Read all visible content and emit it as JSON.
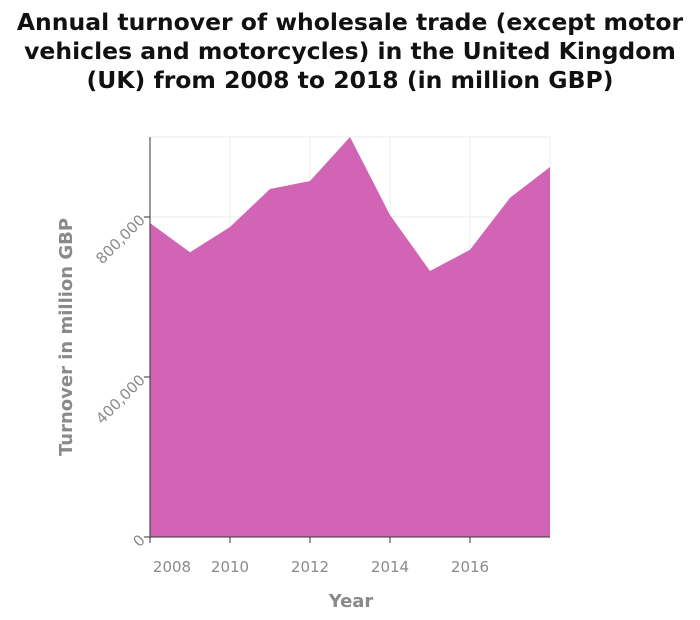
{
  "chart_data": {
    "type": "area",
    "title": "Annual turnover of wholesale trade (except motor vehicles and motorcycles) in the United Kingdom (UK) from 2008 to 2018 (in million GBP)",
    "xlabel": "Year",
    "ylabel": "Turnover in million GBP",
    "x": [
      2008,
      2009,
      2010,
      2011,
      2012,
      2013,
      2014,
      2015,
      2016,
      2017,
      2018
    ],
    "values": [
      785000,
      712000,
      775000,
      870000,
      890000,
      1000000,
      805000,
      665000,
      718000,
      848000,
      925000
    ],
    "xlim": [
      2008,
      2018
    ],
    "ylim": [
      0,
      1000000
    ],
    "x_ticks": [
      2008,
      2010,
      2012,
      2014,
      2016
    ],
    "x_tick_labels": [
      "2008",
      "2010",
      "2012",
      "2014",
      "2016"
    ],
    "y_ticks": [
      0,
      400000,
      800000
    ],
    "y_tick_labels": [
      "0",
      "400,000",
      "800,000"
    ],
    "grid": true,
    "legend": "none",
    "fill_color": "#d264b6"
  }
}
